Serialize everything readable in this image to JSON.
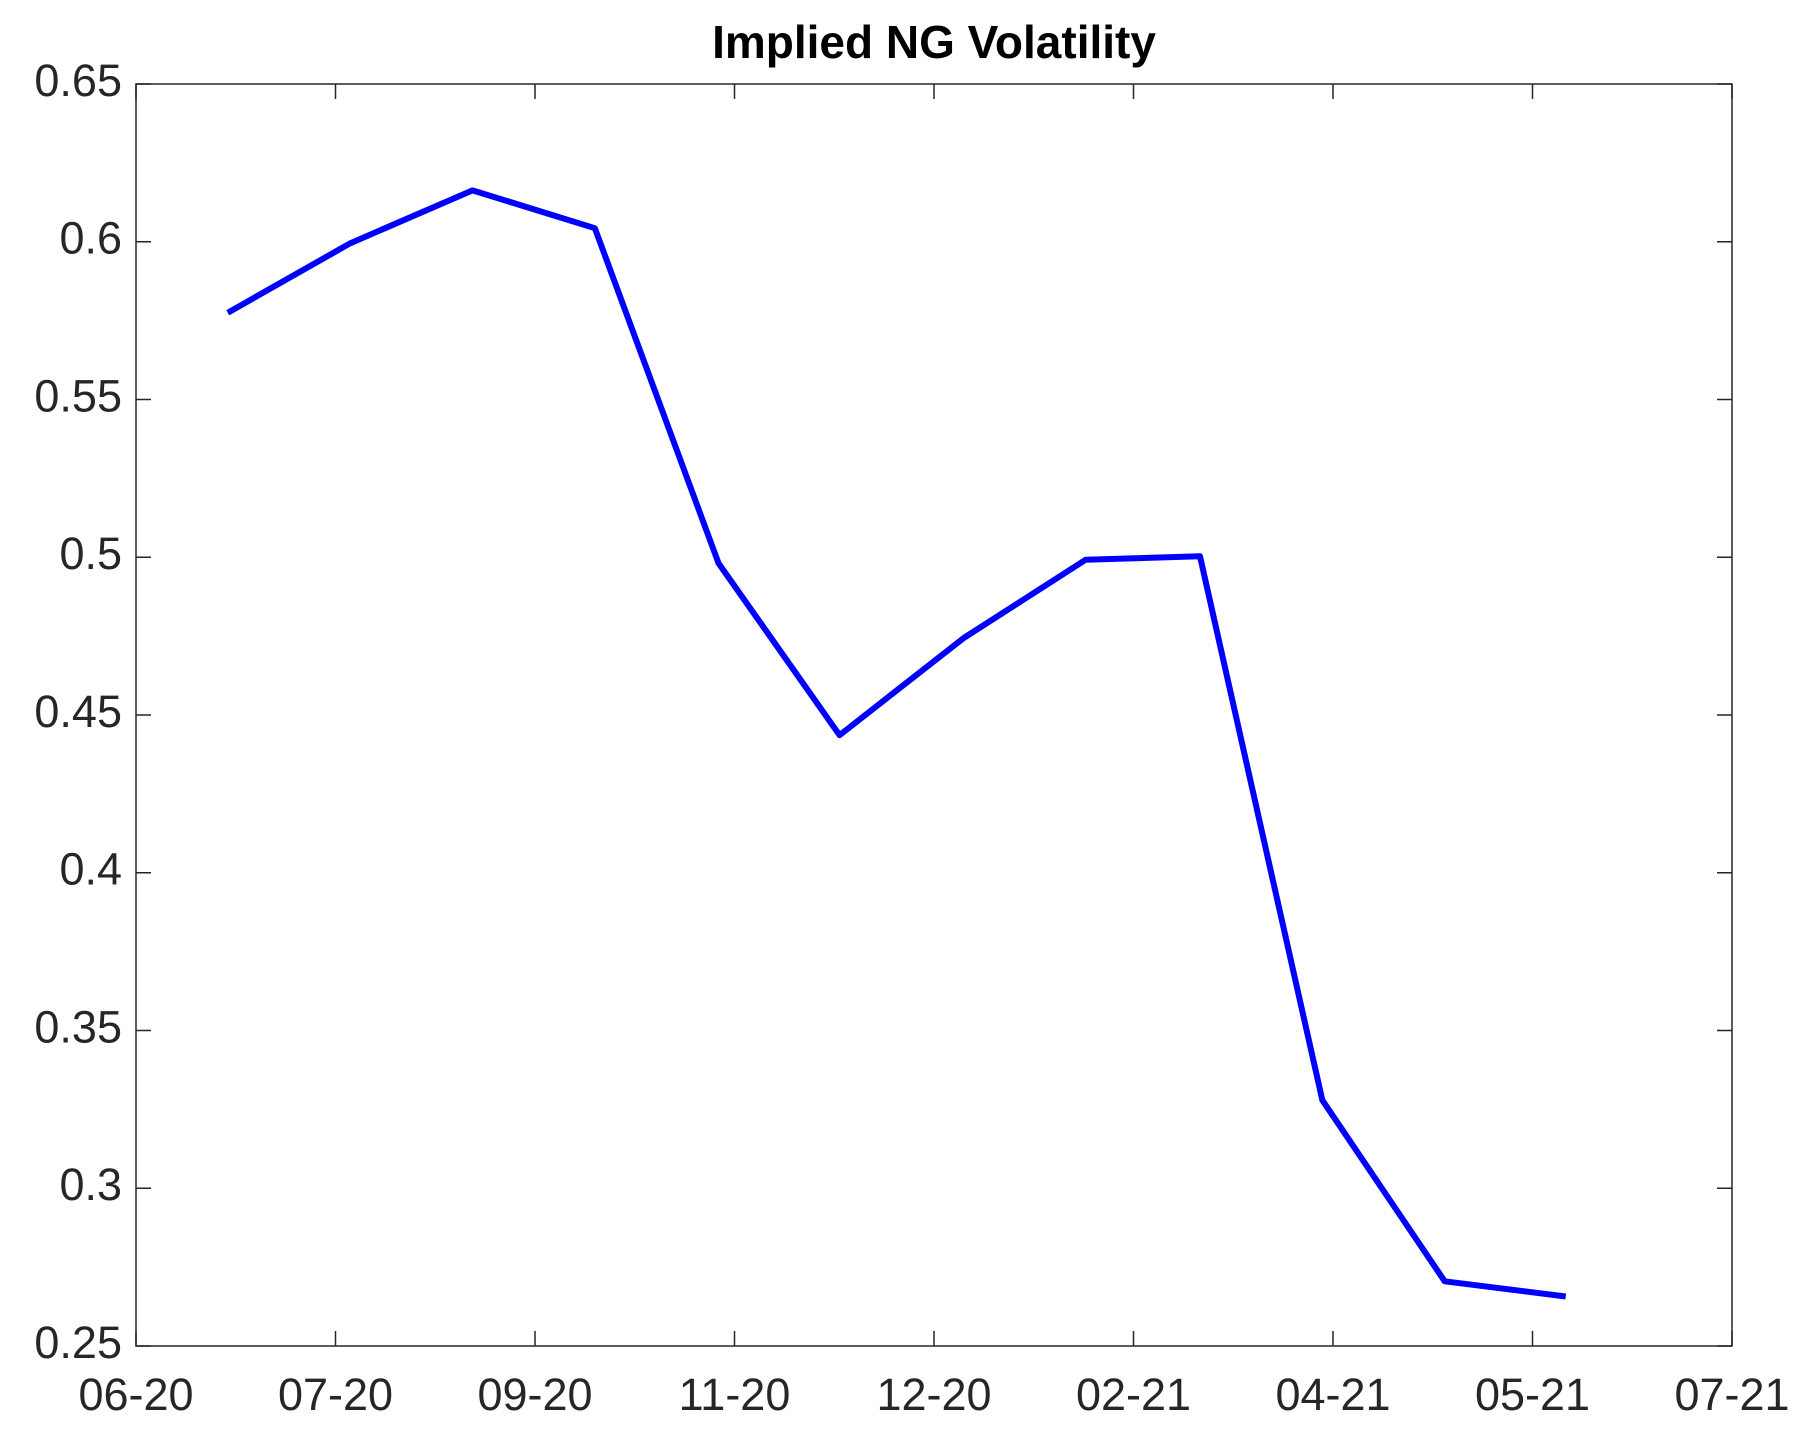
{
  "chart_data": {
    "type": "line",
    "title": "Implied NG  Volatility",
    "x": [
      0.69,
      1.61,
      2.53,
      3.45,
      4.38,
      5.29,
      6.22,
      7.14,
      8.0,
      8.92,
      9.84,
      10.75
    ],
    "series": [
      {
        "name": "Implied NG Volatility",
        "color": "#0000ff",
        "values": [
          0.5775,
          0.5995,
          0.6163,
          0.6043,
          0.4981,
          0.4436,
          0.4743,
          0.4992,
          0.5003,
          0.3279,
          0.2705,
          0.2657
        ]
      }
    ],
    "xlim": [
      0,
      12
    ],
    "xticks": [
      {
        "value": 0,
        "label": "06-20"
      },
      {
        "value": 1.5,
        "label": "07-20"
      },
      {
        "value": 3,
        "label": "09-20"
      },
      {
        "value": 4.5,
        "label": "11-20"
      },
      {
        "value": 6,
        "label": "12-20"
      },
      {
        "value": 7.5,
        "label": "02-21"
      },
      {
        "value": 9,
        "label": "04-21"
      },
      {
        "value": 10.5,
        "label": "05-21"
      },
      {
        "value": 12,
        "label": "07-21"
      }
    ],
    "ylim": [
      0.25,
      0.65
    ],
    "yticks": [
      0.25,
      0.3,
      0.35,
      0.4,
      0.45,
      0.5,
      0.55,
      0.6,
      0.65
    ],
    "grid": false
  }
}
